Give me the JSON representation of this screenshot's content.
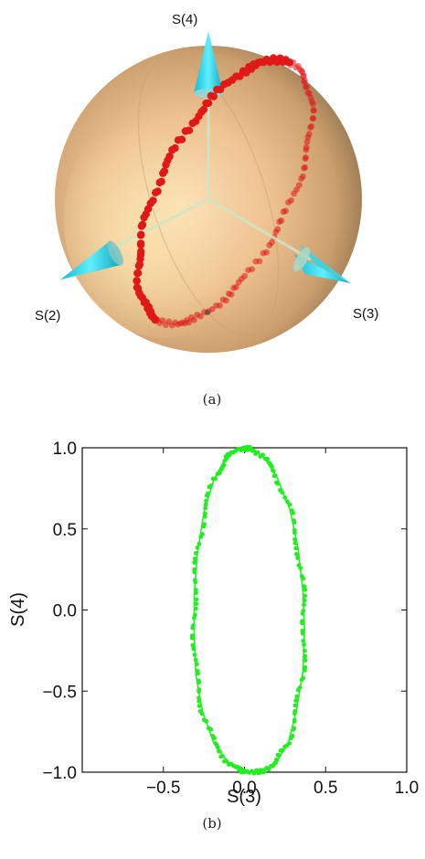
{
  "chart_data": [
    {
      "type": "scatter",
      "panel": "(a)",
      "caption": "(a)",
      "axes": [
        {
          "label": "S(4)",
          "color": "#22d3e6"
        },
        {
          "label": "S(2)",
          "color": "#22d3e6"
        },
        {
          "label": "S(3)",
          "color": "#22d3e6"
        }
      ],
      "sphere_color": "#e8b07a",
      "points_color": "#e01818"
    },
    {
      "type": "scatter",
      "panel": "(b)",
      "caption": "(b)",
      "xlabel": "S(3)",
      "ylabel": "S(4)",
      "xlim": [
        -1.0,
        1.0
      ],
      "ylim": [
        -1.0,
        1.0
      ],
      "xticks": [
        "−0.5",
        "0.0",
        "0.5",
        "1.0"
      ],
      "xtick_values": [
        -0.5,
        0.0,
        0.5,
        1.0
      ],
      "yticks": [
        "−1.0",
        "−0.5",
        "0.0",
        "0.5",
        "1.0"
      ],
      "ytick_values": [
        -1.0,
        -0.5,
        0.0,
        0.5,
        1.0
      ],
      "grid": false,
      "color": "#22ee22",
      "series": [
        {
          "values_x": [
            0.12,
            0.2,
            0.27,
            0.32,
            0.36,
            0.37,
            0.36,
            0.33,
            0.28,
            0.2,
            0.12,
            0.04,
            -0.04,
            -0.12,
            -0.19,
            -0.25,
            -0.29,
            -0.31,
            -0.31,
            -0.3,
            -0.26,
            -0.19,
            -0.1,
            -0.03,
            0.05,
            0.12
          ],
          "values_y": [
            -0.99,
            -0.93,
            -0.82,
            -0.62,
            -0.38,
            -0.12,
            0.12,
            0.38,
            0.62,
            0.82,
            0.94,
            1.0,
            0.99,
            0.93,
            0.8,
            0.6,
            0.35,
            0.1,
            -0.15,
            -0.4,
            -0.62,
            -0.82,
            -0.94,
            -0.99,
            -1.0,
            -0.99
          ]
        }
      ]
    }
  ]
}
